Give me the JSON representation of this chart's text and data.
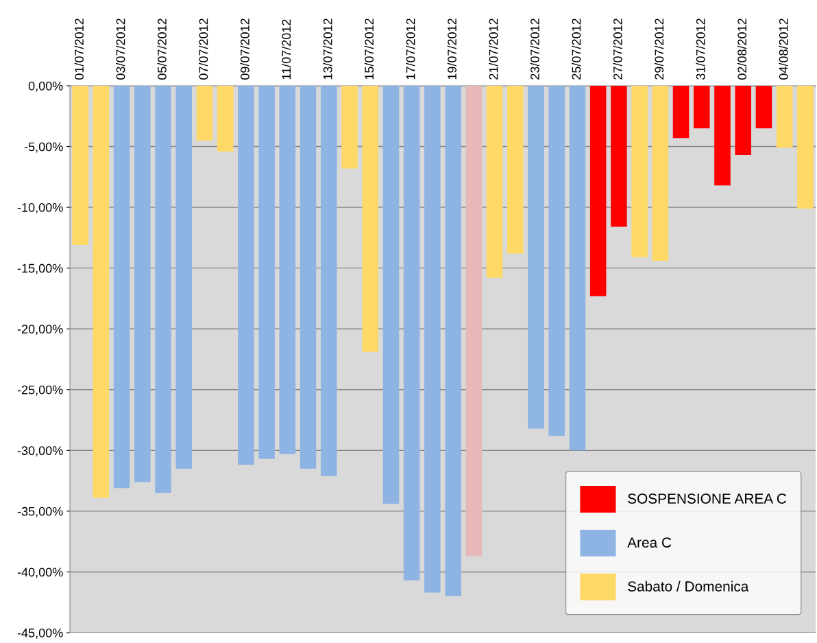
{
  "chart_data": {
    "type": "bar",
    "categories": [
      "01/07/2012",
      null,
      "03/07/2012",
      null,
      "05/07/2012",
      null,
      "07/07/2012",
      null,
      "09/07/2012",
      null,
      "11/07/2012",
      null,
      "13/07/2012",
      null,
      "15/07/2012",
      null,
      "17/07/2012",
      null,
      "19/07/2012",
      null,
      "21/07/2012",
      null,
      "23/07/2012",
      null,
      "25/07/2012",
      null,
      "27/07/2012",
      null,
      "29/07/2012",
      null,
      "31/07/2012",
      null,
      "02/08/2012",
      null,
      "04/08/2012",
      null
    ],
    "series": [
      {
        "name": "SOSPENSIONE AREA C",
        "color": "#ff0000",
        "values": [
          null,
          null,
          null,
          null,
          null,
          null,
          null,
          null,
          null,
          null,
          null,
          null,
          null,
          null,
          null,
          null,
          null,
          null,
          null,
          null,
          null,
          null,
          null,
          null,
          null,
          -17.3,
          -11.6,
          null,
          null,
          -4.3,
          -3.5,
          -8.2,
          -5.7,
          -3.5,
          null,
          null
        ]
      },
      {
        "name": "Area C",
        "color": "#8eb4e3",
        "values": [
          null,
          null,
          -33.1,
          -32.6,
          -33.5,
          -31.5,
          null,
          null,
          -31.2,
          -30.7,
          -30.3,
          -31.5,
          -32.1,
          null,
          null,
          -34.4,
          -40.7,
          -41.7,
          -42.0,
          null,
          null,
          null,
          -28.2,
          -28.8,
          -30.0,
          null,
          null,
          null,
          null,
          null,
          null,
          null,
          null,
          null,
          null,
          null
        ]
      },
      {
        "name": "Sabato / Domenica",
        "color": "#ffd966",
        "values": [
          -13.1,
          -33.9,
          null,
          null,
          null,
          null,
          -4.5,
          -5.4,
          null,
          null,
          null,
          null,
          null,
          -6.8,
          -21.9,
          null,
          null,
          null,
          null,
          null,
          -15.8,
          -13.8,
          null,
          null,
          null,
          null,
          null,
          -14.1,
          -14.4,
          null,
          null,
          null,
          null,
          null,
          -5.1,
          -10.1
        ]
      },
      {
        "color": "#e6b9b8",
        "values": [
          null,
          null,
          null,
          null,
          null,
          null,
          null,
          null,
          null,
          null,
          null,
          null,
          null,
          null,
          null,
          null,
          null,
          null,
          null,
          -38.7,
          null,
          null,
          null,
          null,
          null,
          null,
          null,
          null,
          null,
          null,
          null,
          null,
          null,
          null,
          null,
          null
        ]
      }
    ],
    "ylim": [
      -45,
      0
    ],
    "yticks": [
      {
        "value": 0,
        "label": "0,00%"
      },
      {
        "value": -5,
        "label": "-5,00%"
      },
      {
        "value": -10,
        "label": "-10,00%"
      },
      {
        "value": -15,
        "label": "-15,00%"
      },
      {
        "value": -20,
        "label": "-20,00%"
      },
      {
        "value": -25,
        "label": "-25,00%"
      },
      {
        "value": -30,
        "label": "-30,00%"
      },
      {
        "value": -35,
        "label": "-35,00%"
      },
      {
        "value": -40,
        "label": "-40,00%"
      },
      {
        "value": -45,
        "label": "-45,00%"
      }
    ],
    "grid": "y",
    "legend": "bottom right"
  }
}
